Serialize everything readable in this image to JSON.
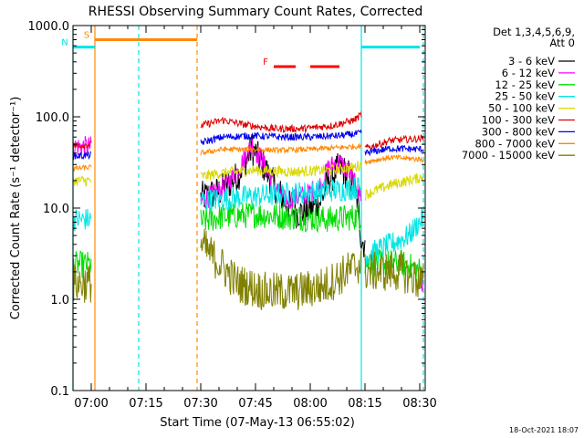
{
  "chart_data": {
    "type": "line",
    "title": "RHESSI Observing Summary Count Rates, Corrected",
    "xlabel": "Start Time (07-May-13 06:55:02)",
    "ylabel": "Corrected Count Rate (s⁻¹ detector⁻¹)",
    "yscale": "log",
    "ylim": [
      0.1,
      1000.0
    ],
    "xlim_minutes_of_day": [
      415.0,
      511.5
    ],
    "x_ticks": [
      "07:00",
      "07:15",
      "07:30",
      "07:45",
      "08:00",
      "08:15",
      "08:30"
    ],
    "y_ticks": [
      "0.1",
      "1.0",
      "10.0",
      "100.0",
      "1000.0"
    ],
    "legend": {
      "header": [
        "Det 1,3,4,5,6,9,",
        "Att 0"
      ],
      "placement": "right",
      "entries": [
        {
          "label": "3 - 6 keV",
          "color": "#000000"
        },
        {
          "label": "6 - 12 keV",
          "color": "#ff00ff"
        },
        {
          "label": "12 - 25 keV",
          "color": "#00dd00"
        },
        {
          "label": "25 - 50 keV",
          "color": "#00e5e5"
        },
        {
          "label": "50 - 100 keV",
          "color": "#d8d800"
        },
        {
          "label": "100 - 300 keV",
          "color": "#dd0000"
        },
        {
          "label": "300 - 800 keV",
          "color": "#0000ee"
        },
        {
          "label": "800 - 7000 keV",
          "color": "#ff8800"
        },
        {
          "label": "7000 - 15000 keV",
          "color": "#808000"
        }
      ]
    },
    "flag_bars": [
      {
        "label": "S",
        "color": "#ff8800",
        "start": "07:01",
        "end": "07:29",
        "level": 700
      },
      {
        "label": "N",
        "color": "#00e5e5",
        "start": "06:55",
        "end": "07:01",
        "level": 580
      },
      {
        "label": "N",
        "color": "#00e5e5",
        "start": "08:14",
        "end": "08:30",
        "level": 580
      },
      {
        "label": "F",
        "color": "#ff0000",
        "start": "07:50",
        "end": "07:56",
        "level": 355
      },
      {
        "label": "F",
        "color": "#ff0000",
        "start": "08:00",
        "end": "08:08",
        "level": 355
      }
    ],
    "vertical_markers": [
      {
        "time": "06:55",
        "color": "#00e5e5",
        "style": "solid"
      },
      {
        "time": "07:01",
        "color": "#ff8800",
        "style": "solid"
      },
      {
        "time": "07:13",
        "color": "#00e5e5",
        "style": "dashed"
      },
      {
        "time": "07:29",
        "color": "#ff8800",
        "style": "dashed"
      },
      {
        "time": "08:14",
        "color": "#00e5e5",
        "style": "solid"
      },
      {
        "time": "08:31",
        "color": "#00e5e5",
        "style": "dashed"
      }
    ],
    "series": [
      {
        "name": "3 - 6 keV",
        "color": "#000000",
        "noise": 0.18,
        "segments": [
          [
            [
              "07:30",
              13
            ],
            [
              "07:35",
              15
            ],
            [
              "07:40",
              22
            ],
            [
              "07:44",
              45
            ],
            [
              "07:47",
              30
            ],
            [
              "07:50",
              18
            ],
            [
              "07:53",
              12
            ],
            [
              "07:56",
              9
            ],
            [
              "07:59",
              9
            ],
            [
              "08:03",
              12
            ],
            [
              "08:05",
              20
            ],
            [
              "08:08",
              28
            ],
            [
              "08:11",
              22
            ],
            [
              "08:13",
              12
            ],
            [
              "08:14",
              4.5
            ],
            [
              "08:15",
              4
            ]
          ]
        ]
      },
      {
        "name": "6 - 12 keV",
        "color": "#ff00ff",
        "noise": 0.12,
        "segments": [
          [
            [
              "06:55",
              47
            ],
            [
              "07:00",
              47
            ]
          ],
          [
            [
              "07:30",
              12
            ],
            [
              "07:35",
              15
            ],
            [
              "07:40",
              25
            ],
            [
              "07:44",
              50
            ],
            [
              "07:47",
              32
            ],
            [
              "07:50",
              18
            ],
            [
              "07:53",
              12
            ],
            [
              "07:56",
              13
            ],
            [
              "07:59",
              14
            ],
            [
              "08:03",
              18
            ],
            [
              "08:05",
              28
            ],
            [
              "08:08",
              32
            ],
            [
              "08:11",
              24
            ],
            [
              "08:13",
              15
            ],
            [
              "08:14",
              14
            ]
          ],
          [
            [
              "08:29",
              1.5
            ],
            [
              "08:31",
              1.5
            ]
          ]
        ]
      },
      {
        "name": "12 - 25 keV",
        "color": "#00dd00",
        "noise": 0.15,
        "segments": [
          [
            [
              "06:55",
              2.4
            ],
            [
              "07:00",
              2.4
            ]
          ],
          [
            [
              "07:30",
              7
            ],
            [
              "07:35",
              8
            ],
            [
              "07:45",
              8.5
            ],
            [
              "07:55",
              8
            ],
            [
              "08:05",
              7.5
            ],
            [
              "08:12",
              8
            ],
            [
              "08:14",
              8
            ]
          ],
          [
            [
              "08:15",
              2.5
            ],
            [
              "08:25",
              2.5
            ],
            [
              "08:31",
              2
            ]
          ]
        ]
      },
      {
        "name": "25 - 50 keV",
        "color": "#00e5e5",
        "noise": 0.13,
        "segments": [
          [
            [
              "06:55",
              7.5
            ],
            [
              "07:00",
              7.5
            ]
          ],
          [
            [
              "07:30",
              12
            ],
            [
              "07:40",
              13
            ],
            [
              "07:50",
              14
            ],
            [
              "08:00",
              15
            ],
            [
              "08:10",
              16
            ],
            [
              "08:14",
              17
            ]
          ],
          [
            [
              "08:15",
              3
            ],
            [
              "08:22",
              4
            ],
            [
              "08:27",
              5
            ],
            [
              "08:31",
              8
            ]
          ]
        ]
      },
      {
        "name": "50 - 100 keV",
        "color": "#d8d800",
        "noise": 0.06,
        "segments": [
          [
            [
              "06:55",
              20
            ],
            [
              "07:00",
              20
            ]
          ],
          [
            [
              "07:30",
              22
            ],
            [
              "07:35",
              24
            ],
            [
              "07:45",
              26
            ],
            [
              "07:55",
              25
            ],
            [
              "08:05",
              26
            ],
            [
              "08:12",
              28
            ],
            [
              "08:14",
              30
            ]
          ],
          [
            [
              "08:15",
              14
            ],
            [
              "08:22",
              18
            ],
            [
              "08:27",
              20
            ],
            [
              "08:31",
              22
            ]
          ]
        ]
      },
      {
        "name": "100 - 300 keV",
        "color": "#dd0000",
        "noise": 0.04,
        "segments": [
          [
            [
              "06:55",
              48
            ],
            [
              "07:00",
              50
            ]
          ],
          [
            [
              "07:30",
              80
            ],
            [
              "07:36",
              92
            ],
            [
              "07:42",
              82
            ],
            [
              "07:50",
              74
            ],
            [
              "07:58",
              74
            ],
            [
              "08:06",
              80
            ],
            [
              "08:12",
              92
            ],
            [
              "08:14",
              105
            ]
          ],
          [
            [
              "08:15",
              45
            ],
            [
              "08:22",
              55
            ],
            [
              "08:31",
              58
            ]
          ]
        ]
      },
      {
        "name": "300 - 800 keV",
        "color": "#0000ee",
        "noise": 0.04,
        "segments": [
          [
            [
              "06:55",
              37
            ],
            [
              "07:00",
              38
            ]
          ],
          [
            [
              "07:30",
              52
            ],
            [
              "07:36",
              60
            ],
            [
              "07:44",
              62
            ],
            [
              "07:52",
              60
            ],
            [
              "08:00",
              60
            ],
            [
              "08:08",
              62
            ],
            [
              "08:14",
              66
            ]
          ],
          [
            [
              "08:15",
              40
            ],
            [
              "08:22",
              45
            ],
            [
              "08:31",
              44
            ]
          ]
        ]
      },
      {
        "name": "800 - 7000 keV",
        "color": "#ff8800",
        "noise": 0.03,
        "segments": [
          [
            [
              "06:55",
              27
            ],
            [
              "07:00",
              28
            ]
          ],
          [
            [
              "07:30",
              40
            ],
            [
              "07:36",
              44
            ],
            [
              "07:44",
              44
            ],
            [
              "07:52",
              43
            ],
            [
              "08:00",
              44
            ],
            [
              "08:08",
              46
            ],
            [
              "08:14",
              48
            ]
          ],
          [
            [
              "08:15",
              32
            ],
            [
              "08:22",
              36
            ],
            [
              "08:31",
              34
            ]
          ]
        ]
      },
      {
        "name": "7000 - 15000 keV",
        "color": "#808000",
        "noise": 0.22,
        "segments": [
          [
            [
              "06:55",
              1.5
            ],
            [
              "07:00",
              1.5
            ]
          ],
          [
            [
              "07:30",
              4
            ],
            [
              "07:35",
              2.5
            ],
            [
              "07:40",
              1.5
            ],
            [
              "07:48",
              1.2
            ],
            [
              "07:56",
              1.2
            ],
            [
              "08:04",
              1.4
            ],
            [
              "08:10",
              2
            ],
            [
              "08:14",
              2.5
            ]
          ],
          [
            [
              "08:15",
              2
            ],
            [
              "08:25",
              2
            ],
            [
              "08:31",
              1.5
            ]
          ]
        ]
      }
    ]
  },
  "footer_timestamp": "18-Oct-2021 18:07"
}
